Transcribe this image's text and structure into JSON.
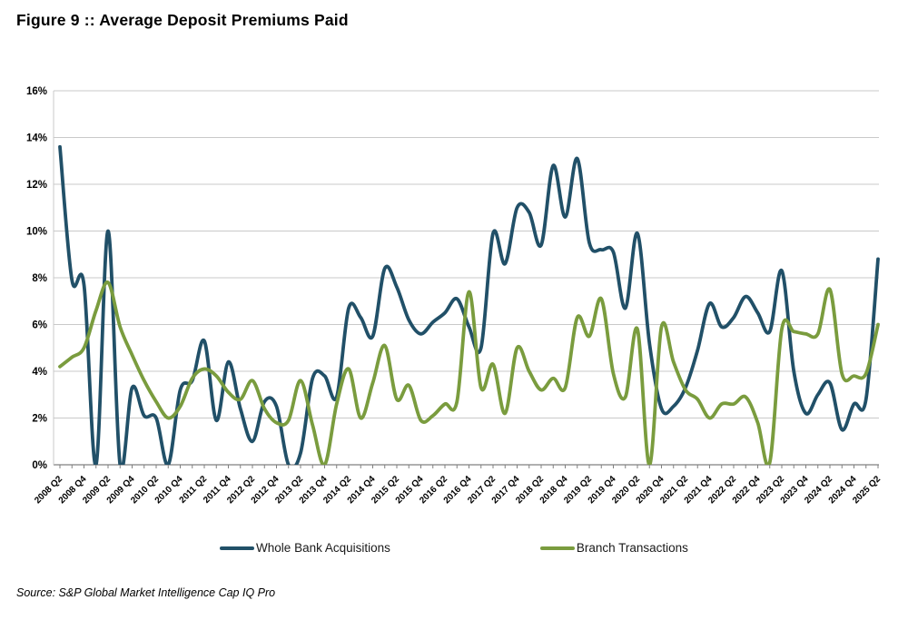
{
  "title": "Figure 9 :: Average Deposit Premiums Paid",
  "source": "Source: S&P Global Market Intelligence Cap IQ Pro",
  "colors": {
    "grid": "#c9c9c9",
    "axis": "#808080",
    "tick": "#808080",
    "text": "#000000",
    "background": "#ffffff",
    "whole_bank": "#215068",
    "branch": "#7a9c3e"
  },
  "chart_data": {
    "type": "line",
    "title": "Average Deposit Premiums Paid",
    "xlabel": "",
    "ylabel": "",
    "ylim": [
      0,
      16
    ],
    "grid": "horizontal",
    "legend_position": "bottom",
    "y_ticks": [
      "0%",
      "2%",
      "4%",
      "6%",
      "8%",
      "10%",
      "12%",
      "14%",
      "16%"
    ],
    "x_tick_label_every": 2,
    "quarters": [
      "2008 Q2",
      "2008 Q3",
      "2008 Q4",
      "2009 Q1",
      "2009 Q2",
      "2009 Q3",
      "2009 Q4",
      "2010 Q1",
      "2010 Q2",
      "2010 Q3",
      "2010 Q4",
      "2011 Q1",
      "2011 Q2",
      "2011 Q3",
      "2011 Q4",
      "2012 Q1",
      "2012 Q2",
      "2012 Q3",
      "2012 Q4",
      "2013 Q1",
      "2013 Q2",
      "2013 Q3",
      "2013 Q4",
      "2014 Q1",
      "2014 Q2",
      "2014 Q3",
      "2014 Q4",
      "2015 Q1",
      "2015 Q2",
      "2015 Q3",
      "2015 Q4",
      "2016 Q1",
      "2016 Q2",
      "2016 Q3",
      "2016 Q4",
      "2017 Q1",
      "2017 Q2",
      "2017 Q3",
      "2017 Q4",
      "2018 Q1",
      "2018 Q2",
      "2018 Q3",
      "2018 Q4",
      "2019 Q1",
      "2019 Q2",
      "2019 Q3",
      "2019 Q4",
      "2020 Q1",
      "2020 Q2",
      "2020 Q3",
      "2020 Q4",
      "2021 Q1",
      "2021 Q2",
      "2021 Q3",
      "2021 Q4",
      "2022 Q1",
      "2022 Q2",
      "2022 Q3",
      "2022 Q4",
      "2023 Q1",
      "2023 Q2",
      "2023 Q3",
      "2023 Q4",
      "2024 Q1",
      "2024 Q2",
      "2024 Q3",
      "2024 Q4",
      "2025 Q1",
      "2025 Q2"
    ],
    "series": [
      {
        "name": "Whole Bank Acquisitions",
        "color": "#215068",
        "values": [
          13.6,
          7.9,
          7.7,
          0.0,
          10.0,
          0.0,
          3.3,
          2.1,
          2.0,
          0.0,
          3.2,
          3.6,
          5.3,
          1.9,
          4.4,
          2.4,
          1.0,
          2.7,
          2.5,
          0.0,
          0.5,
          3.7,
          3.8,
          2.9,
          6.7,
          6.3,
          5.5,
          8.4,
          7.6,
          6.2,
          5.6,
          6.1,
          6.5,
          7.1,
          5.9,
          5.0,
          9.9,
          8.6,
          11.0,
          10.8,
          9.4,
          12.8,
          10.6,
          13.1,
          9.5,
          9.2,
          9.1,
          6.7,
          9.9,
          5.2,
          2.4,
          2.5,
          3.3,
          4.9,
          6.9,
          5.9,
          6.3,
          7.2,
          6.5,
          5.7,
          8.3,
          4.0,
          2.2,
          3.0,
          3.5,
          1.5,
          2.6,
          2.8,
          8.8
        ]
      },
      {
        "name": "Branch Transactions",
        "color": "#7a9c3e",
        "values": [
          4.2,
          4.6,
          5.0,
          6.6,
          7.8,
          5.9,
          4.7,
          3.6,
          2.7,
          2.0,
          2.5,
          3.7,
          4.1,
          3.8,
          3.1,
          2.8,
          3.6,
          2.4,
          1.8,
          1.9,
          3.6,
          1.7,
          0.0,
          2.6,
          4.1,
          2.0,
          3.5,
          5.1,
          2.8,
          3.4,
          1.9,
          2.1,
          2.6,
          2.7,
          7.4,
          3.3,
          4.3,
          2.2,
          5.0,
          4.0,
          3.2,
          3.7,
          3.3,
          6.3,
          5.5,
          7.1,
          3.9,
          2.9,
          5.8,
          0.0,
          5.9,
          4.4,
          3.2,
          2.8,
          2.0,
          2.6,
          2.6,
          2.9,
          1.8,
          0.1,
          5.8,
          5.7,
          5.6,
          5.6,
          7.5,
          3.9,
          3.8,
          3.9,
          6.0
        ]
      }
    ]
  }
}
